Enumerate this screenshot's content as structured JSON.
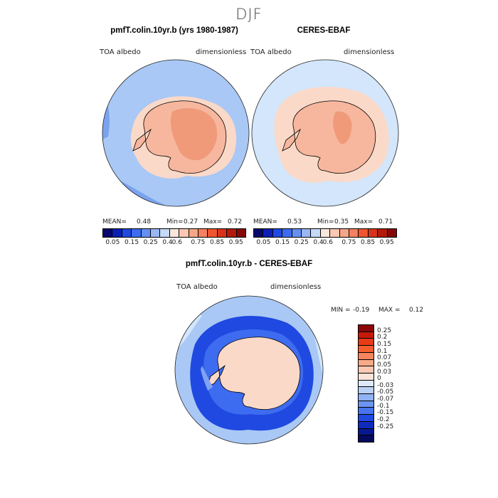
{
  "season": "DJF",
  "colors": {
    "ocean_light": "#d3e6fb",
    "ocean_mid": "#a9c8f5",
    "ocean_blue": "#7aa3ef",
    "land_peach": "#f6b79e",
    "land_deep": "#f09a7a",
    "pale_peach": "#fbd9c8",
    "diff_blue_dark": "#1f49e0",
    "diff_blue": "#3d6cf0",
    "diff_blue_light": "#7fa3f3",
    "coast_line": "#000000"
  },
  "panels": [
    {
      "title": "pmfT.colin.10yr.b (yrs 1980-1987)",
      "variable": "TOA albedo",
      "units": "dimensionless",
      "stats": {
        "mean_label": "MEAN=",
        "mean": "0.48",
        "min_label": "Min=",
        "min": "0.27",
        "max_label": "Max=",
        "max": "0.72"
      }
    },
    {
      "title": "CERES-EBAF",
      "variable": "TOA albedo",
      "units": "dimensionless",
      "stats": {
        "mean_label": "MEAN=",
        "mean": "0.53",
        "min_label": "Min=",
        "min": "0.35",
        "max_label": "Max=",
        "max": "0.71"
      }
    }
  ],
  "abs_colorbar": {
    "colors": [
      "#08086b",
      "#0c1fb4",
      "#1f49e0",
      "#3d6cf0",
      "#6590f2",
      "#9ab6f4",
      "#c5d9f9",
      "#fbe6dc",
      "#f9c7b2",
      "#f6a688",
      "#f5815f",
      "#ee5530",
      "#d8331a",
      "#b41a0a",
      "#850808"
    ],
    "labels": [
      "0.05",
      "0.15",
      "0.25",
      "0.4",
      "0.6",
      "0.75",
      "0.85",
      "0.95"
    ]
  },
  "diff_panel": {
    "title": "pmfT.colin.10yr.b - CERES-EBAF",
    "variable": "TOA albedo",
    "units": "dimensionless",
    "min_label": "MIN =",
    "min": "-0.19",
    "max_label": "MAX =",
    "max": "0.12"
  },
  "diff_colorbar": {
    "colors": [
      "#8b0808",
      "#c51a0a",
      "#e83a16",
      "#f65e2e",
      "#f7845c",
      "#f8a986",
      "#fac8b4",
      "#fce3d8",
      "#dde9fa",
      "#b9d1f6",
      "#91b2f4",
      "#6c94f2",
      "#4675ef",
      "#1f49e0",
      "#0f2bbd",
      "#08188f",
      "#050a5c"
    ],
    "labels": [
      "0.25",
      "0.2",
      "0.15",
      "0.1",
      "0.07",
      "0.05",
      "0.03",
      "0",
      "-0.03",
      "-0.05",
      "-0.07",
      "-0.1",
      "-0.15",
      "-0.2",
      "-0.25"
    ]
  }
}
